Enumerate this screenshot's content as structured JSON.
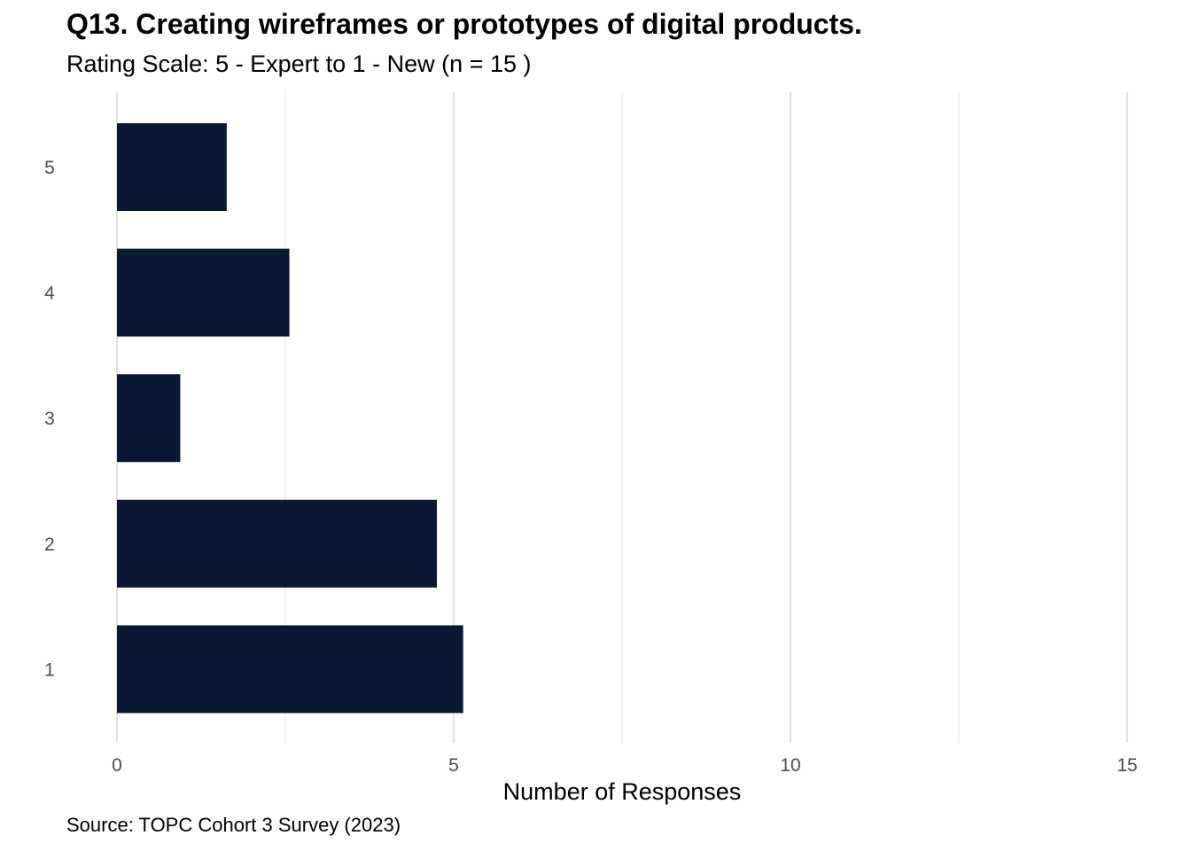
{
  "colors": {
    "bar": "#0a1834",
    "grid_major": "#e3e3e3",
    "grid_minor": "#f0f0f0",
    "tick_text": "#4d4d4d"
  },
  "chart_data": {
    "type": "bar",
    "orientation": "horizontal",
    "title": "Q13. Creating wireframes or prototypes of digital products.",
    "subtitle": "Rating Scale: 5 - Expert to 1 - New (n = 15 )",
    "caption": "Source: TOPC Cohort 3 Survey (2023)",
    "xlabel": "Number of Responses",
    "ylabel": "",
    "categories": [
      "5",
      "4",
      "3",
      "2",
      "1"
    ],
    "values": [
      1.63,
      2.56,
      0.94,
      4.75,
      5.14
    ],
    "xlim": [
      0,
      15
    ],
    "xticks": [
      0,
      5,
      10,
      15
    ],
    "grid": true,
    "legend": "none"
  }
}
